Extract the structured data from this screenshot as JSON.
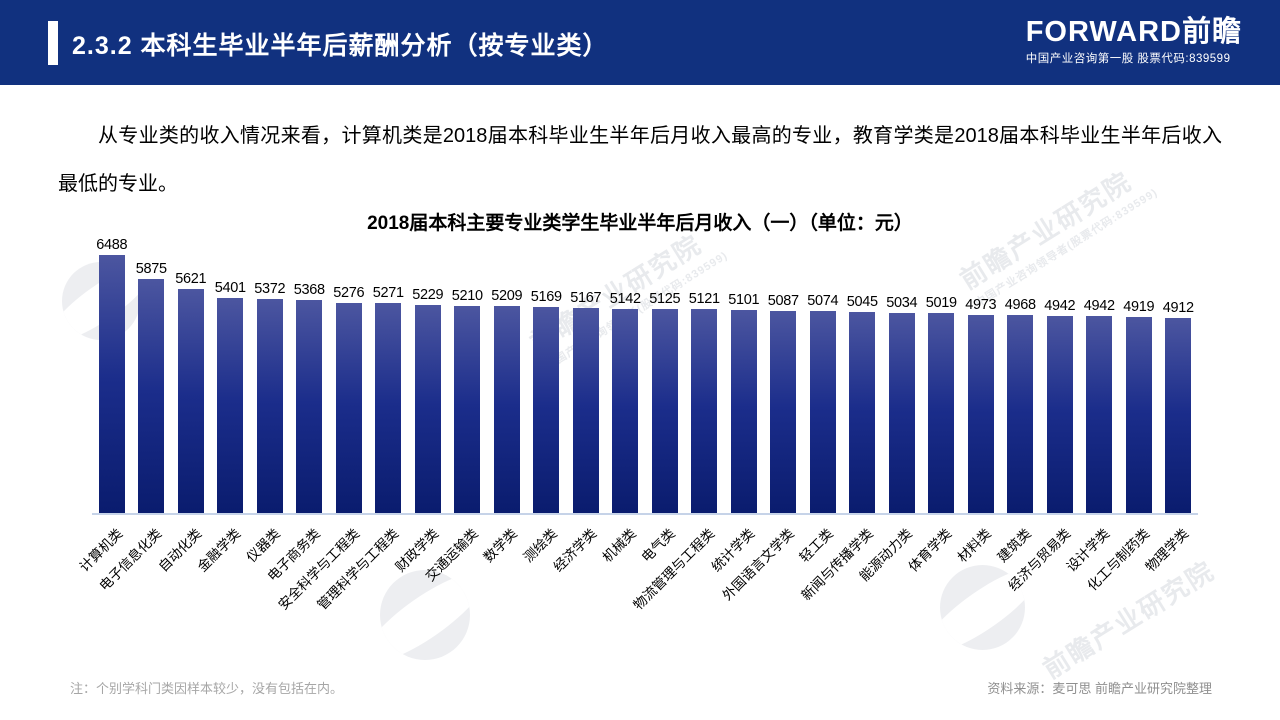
{
  "header": {
    "title": "2.3.2 本科生毕业半年后薪酬分析（按专业类）",
    "logo_text": "FORWARD前瞻",
    "logo_subtitle": "中国产业咨询第一股 股票代码:839599",
    "bg_color": "#11317f"
  },
  "body": {
    "paragraph": "从专业类的收入情况来看，计算机类是2018届本科毕业生半年后月收入最高的专业，教育学类是2018届本科毕业生半年后收入最低的专业。"
  },
  "chart_data": {
    "type": "bar",
    "title": "2018届本科主要专业类学生毕业半年后月收入（一）（单位：元）",
    "unit": "元",
    "categories": [
      "计算机类",
      "电子信息化类",
      "自动化类",
      "金融学类",
      "仪器类",
      "电子商务类",
      "安全科学与工程类",
      "管理科学与工程类",
      "财政学类",
      "交通运输类",
      "数学类",
      "测绘类",
      "经济学类",
      "机械类",
      "电气类",
      "物流管理与工程类",
      "统计学类",
      "外国语言文学类",
      "轻工类",
      "新闻与传播学类",
      "能源动力类",
      "体育学类",
      "材料类",
      "建筑类",
      "经济与贸易类",
      "设计学类",
      "化工与制药类",
      "物理学类"
    ],
    "values": [
      6488,
      5875,
      5621,
      5401,
      5372,
      5368,
      5276,
      5271,
      5229,
      5210,
      5209,
      5169,
      5167,
      5142,
      5125,
      5121,
      5101,
      5087,
      5074,
      5045,
      5034,
      5019,
      4973,
      4968,
      4942,
      4942,
      4919,
      4912
    ],
    "ylim": [
      0,
      6488
    ],
    "grid": false,
    "legend": "none",
    "value_labels": "above bars",
    "bar_color_top": "#4c56a0",
    "bar_color_bottom": "#0a1c6e",
    "axis_line_color": "#c6d3e8"
  },
  "footer": {
    "note": "注：个别学科门类因样本较少，没有包括在内。",
    "source": "资料来源：麦可思 前瞻产业研究院整理"
  },
  "watermark": {
    "text": "前瞻产业研究院",
    "subtext": "中国产业咨询领导者(股票代码:839599)"
  }
}
